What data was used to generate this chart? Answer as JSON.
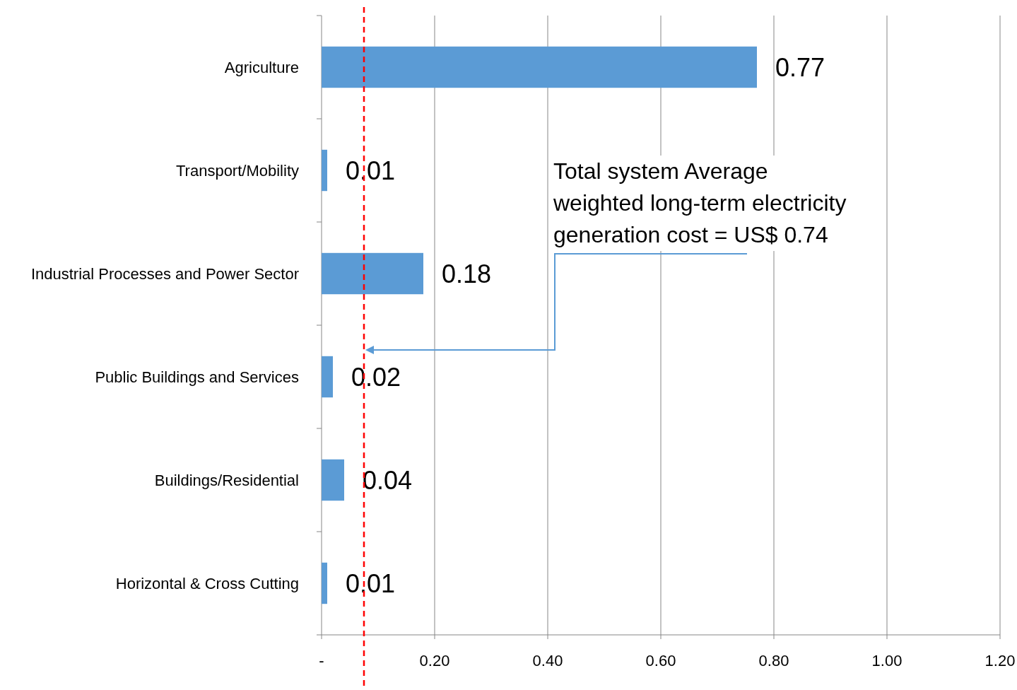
{
  "chart_data": {
    "type": "bar",
    "orientation": "horizontal",
    "categories": [
      "Agriculture",
      "Transport/Mobility",
      "Industrial Processes and Power Sector",
      "Public Buildings and Services",
      "Buildings/Residential",
      "Horizontal & Cross Cutting"
    ],
    "values": [
      0.77,
      0.01,
      0.18,
      0.02,
      0.04,
      0.01
    ],
    "color": "#5b9bd5",
    "xlim": [
      0,
      1.2
    ],
    "xticks": [
      {
        "value": 0,
        "label": "-"
      },
      {
        "value": 0.2,
        "label": "0.20"
      },
      {
        "value": 0.4,
        "label": "0.40"
      },
      {
        "value": 0.6,
        "label": "0.60"
      },
      {
        "value": 0.8,
        "label": "0.80"
      },
      {
        "value": 1,
        "label": "1.00"
      },
      {
        "value": 1.2,
        "label": "1.20"
      }
    ],
    "grid": "x",
    "data_labels": true,
    "ref_lines": [
      {
        "axis": "x",
        "value": 0.075,
        "color": "#ff0000",
        "line_style": "dashed"
      }
    ],
    "annotations": [
      "Total system Average weighted long-term electricity generation cost = US$ 0.74"
    ]
  }
}
